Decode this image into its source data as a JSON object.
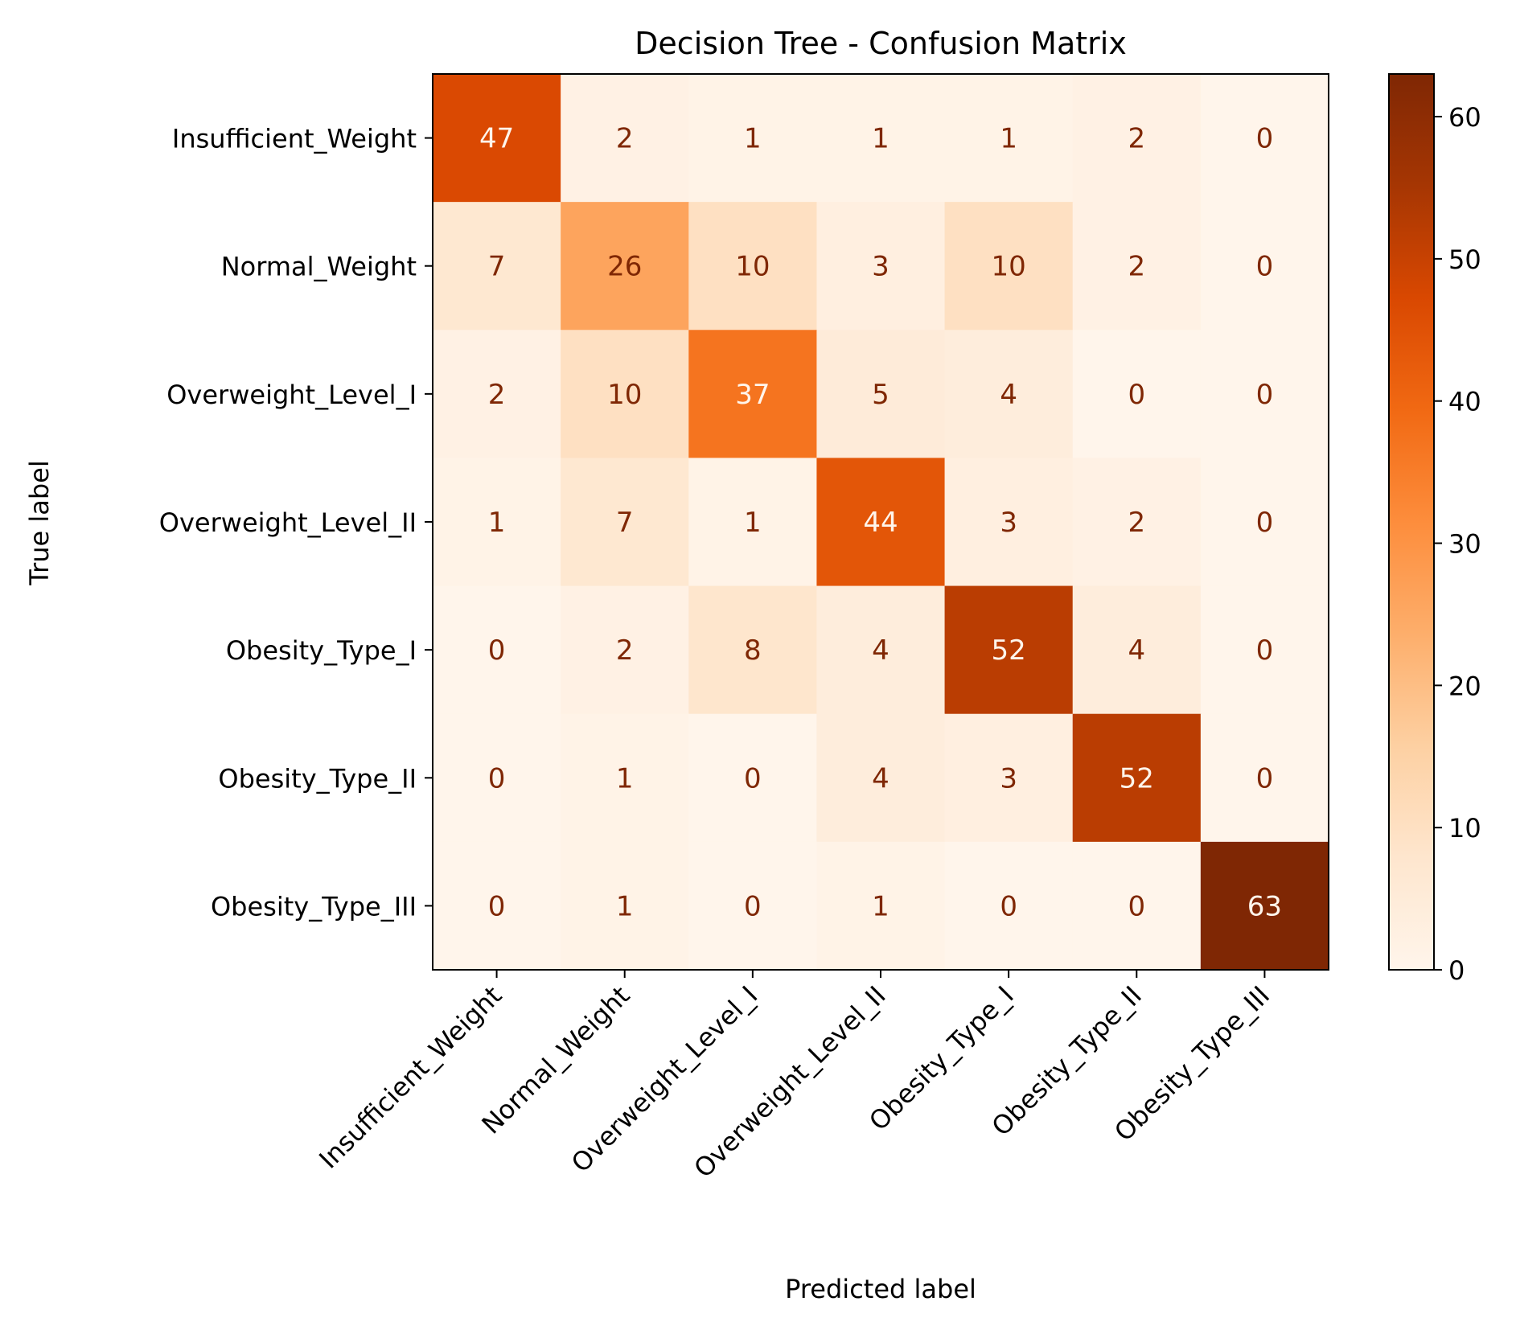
{
  "chart_data": {
    "type": "heatmap",
    "title": "Decision Tree - Confusion Matrix",
    "xlabel": "Predicted label",
    "ylabel": "True label",
    "x_categories": [
      "Insufficient_Weight",
      "Normal_Weight",
      "Overweight_Level_I",
      "Overweight_Level_II",
      "Obesity_Type_I",
      "Obesity_Type_II",
      "Obesity_Type_III"
    ],
    "y_categories": [
      "Insufficient_Weight",
      "Normal_Weight",
      "Overweight_Level_I",
      "Overweight_Level_II",
      "Obesity_Type_I",
      "Obesity_Type_II",
      "Obesity_Type_III"
    ],
    "values": [
      [
        47,
        2,
        1,
        1,
        1,
        2,
        0
      ],
      [
        7,
        26,
        10,
        3,
        10,
        2,
        0
      ],
      [
        2,
        10,
        37,
        5,
        4,
        0,
        0
      ],
      [
        1,
        7,
        1,
        44,
        3,
        2,
        0
      ],
      [
        0,
        2,
        8,
        4,
        52,
        4,
        0
      ],
      [
        0,
        1,
        0,
        4,
        3,
        52,
        0
      ],
      [
        0,
        1,
        0,
        1,
        0,
        0,
        63
      ]
    ],
    "colormap": "Oranges",
    "colorbar": {
      "min": 0,
      "max": 63,
      "ticks": [
        "0",
        "10",
        "20",
        "30",
        "40",
        "50",
        "60"
      ]
    },
    "colors": {
      "light_text": "#fff5eb",
      "dark_text": "#7f2704"
    }
  }
}
